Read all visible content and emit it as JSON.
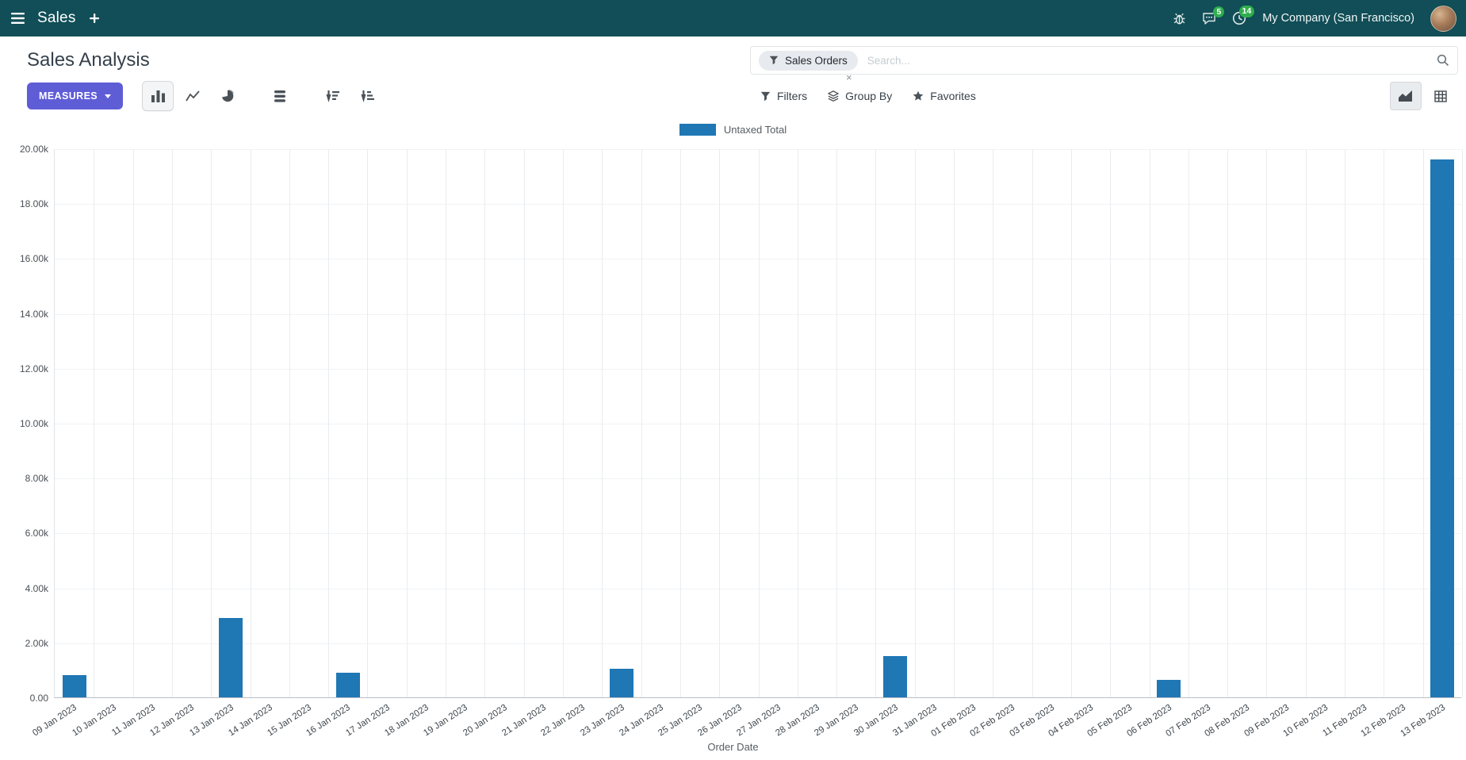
{
  "navbar": {
    "app_menu_label": "Sales",
    "company": "My Company (San Francisco)",
    "message_count": "5",
    "activity_count": "14"
  },
  "control_panel": {
    "title": "Sales Analysis",
    "measures_label": "MEASURES",
    "filters_label": "Filters",
    "group_by_label": "Group By",
    "favorites_label": "Favorites",
    "search": {
      "facet": "Sales Orders",
      "facet_remove": "×",
      "placeholder": "Search..."
    }
  },
  "colors": {
    "navbar_bg": "#114e57",
    "primary_button": "#5f5dd6",
    "badge_green": "#2fae4e",
    "bar": "#1f77b4"
  },
  "chart_data": {
    "type": "bar",
    "title": "",
    "xlabel": "Order Date",
    "ylabel": "",
    "ylim": [
      0,
      20000
    ],
    "grid": true,
    "legend_position": "top",
    "yticks": [
      {
        "value": 0,
        "label": "0.00"
      },
      {
        "value": 2000,
        "label": "2.00k"
      },
      {
        "value": 4000,
        "label": "4.00k"
      },
      {
        "value": 6000,
        "label": "6.00k"
      },
      {
        "value": 8000,
        "label": "8.00k"
      },
      {
        "value": 10000,
        "label": "10.00k"
      },
      {
        "value": 12000,
        "label": "12.00k"
      },
      {
        "value": 14000,
        "label": "14.00k"
      },
      {
        "value": 16000,
        "label": "16.00k"
      },
      {
        "value": 18000,
        "label": "18.00k"
      },
      {
        "value": 20000,
        "label": "20.00k"
      }
    ],
    "categories": [
      "09 Jan 2023",
      "10 Jan 2023",
      "11 Jan 2023",
      "12 Jan 2023",
      "13 Jan 2023",
      "14 Jan 2023",
      "15 Jan 2023",
      "16 Jan 2023",
      "17 Jan 2023",
      "18 Jan 2023",
      "19 Jan 2023",
      "20 Jan 2023",
      "21 Jan 2023",
      "22 Jan 2023",
      "23 Jan 2023",
      "24 Jan 2023",
      "25 Jan 2023",
      "26 Jan 2023",
      "27 Jan 2023",
      "28 Jan 2023",
      "29 Jan 2023",
      "30 Jan 2023",
      "31 Jan 2023",
      "01 Feb 2023",
      "02 Feb 2023",
      "03 Feb 2023",
      "04 Feb 2023",
      "05 Feb 2023",
      "06 Feb 2023",
      "07 Feb 2023",
      "08 Feb 2023",
      "09 Feb 2023",
      "10 Feb 2023",
      "11 Feb 2023",
      "12 Feb 2023",
      "13 Feb 2023"
    ],
    "series": [
      {
        "name": "Untaxed Total",
        "color": "#1f77b4",
        "values": [
          800,
          0,
          0,
          0,
          2900,
          0,
          0,
          900,
          0,
          0,
          0,
          0,
          0,
          0,
          1050,
          0,
          0,
          0,
          0,
          0,
          0,
          1500,
          0,
          0,
          0,
          0,
          0,
          0,
          650,
          0,
          0,
          0,
          0,
          0,
          0,
          19600
        ]
      }
    ]
  }
}
